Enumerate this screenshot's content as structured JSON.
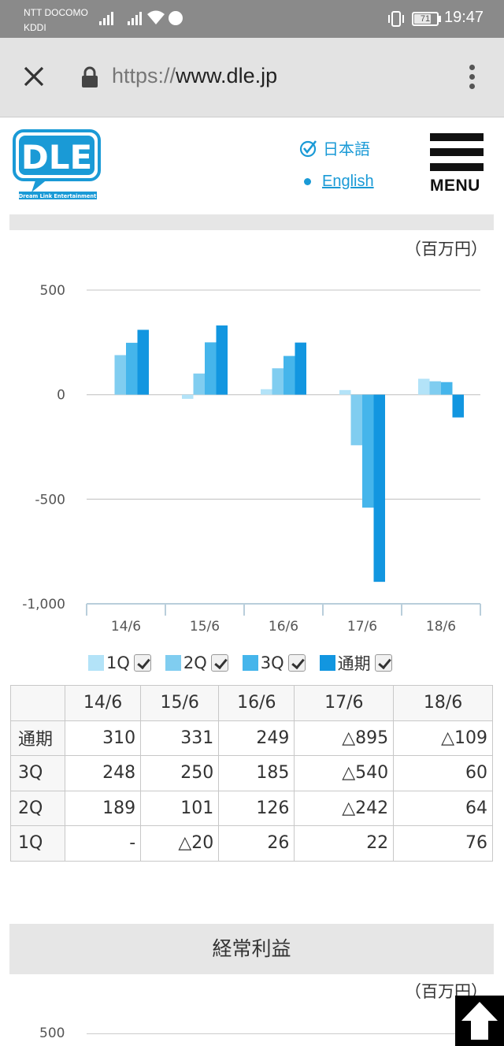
{
  "status_bar": {
    "carrier_1": "NTT DOCOMO",
    "carrier_2": "KDDI",
    "battery": "71",
    "time": "19:47"
  },
  "browser": {
    "url_scheme": "https://",
    "url_host": "www.dle.jp"
  },
  "header": {
    "logo_text": "DLE",
    "logo_subtext": "Dream Link Entertainment",
    "lang_ja": "日本語",
    "lang_en": "English",
    "menu_label": "MENU"
  },
  "chart1": {
    "unit": "（百万円）",
    "chart_data": {
      "type": "bar",
      "categories": [
        "14/6",
        "15/6",
        "16/6",
        "17/6",
        "18/6"
      ],
      "series": [
        {
          "name": "1Q",
          "values": [
            null,
            -20,
            26,
            22,
            76
          ],
          "color": "#b3e3f8"
        },
        {
          "name": "2Q",
          "values": [
            189,
            101,
            126,
            -242,
            64
          ],
          "color": "#80cdf0"
        },
        {
          "name": "3Q",
          "values": [
            248,
            250,
            185,
            -540,
            60
          ],
          "color": "#45b5eb"
        },
        {
          "name": "通期",
          "values": [
            310,
            331,
            249,
            -895,
            -109
          ],
          "color": "#1296e0"
        }
      ],
      "yticks": [
        500,
        0,
        -500,
        -1000
      ],
      "ytick_labels": [
        "500",
        "0",
        "-500",
        "-1,000"
      ],
      "ylim": [
        -1000,
        500
      ],
      "grid": true,
      "legend": "bottom"
    },
    "table": {
      "headers": [
        "",
        "14/6",
        "15/6",
        "16/6",
        "17/6",
        "18/6"
      ],
      "rows": [
        {
          "label": "通期",
          "cells": [
            "310",
            "331",
            "249",
            "△895",
            "△109"
          ]
        },
        {
          "label": "3Q",
          "cells": [
            "248",
            "250",
            "185",
            "△540",
            "60"
          ]
        },
        {
          "label": "2Q",
          "cells": [
            "189",
            "101",
            "126",
            "△242",
            "64"
          ]
        },
        {
          "label": "1Q",
          "cells": [
            "-",
            "△20",
            "26",
            "22",
            "76"
          ]
        }
      ]
    }
  },
  "section2": {
    "title": "経常利益",
    "unit": "（百万円）",
    "first_tick": "500"
  }
}
